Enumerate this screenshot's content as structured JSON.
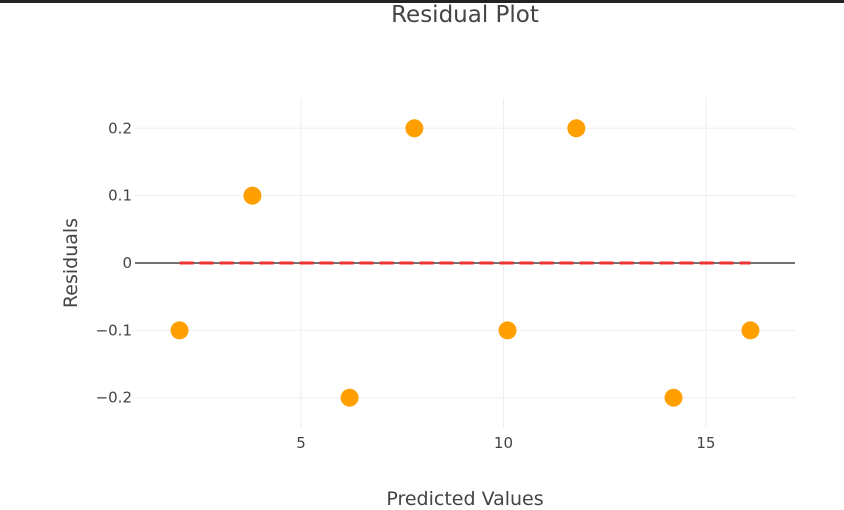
{
  "chart_data": {
    "type": "scatter",
    "title": "Residual Plot",
    "xlabel": "Predicted Values",
    "ylabel": "Residuals",
    "xlim": [
      0.9,
      17.2
    ],
    "ylim": [
      -0.245,
      0.245
    ],
    "x_ticks": [
      {
        "value": 5,
        "label": "5"
      },
      {
        "value": 10,
        "label": "10"
      },
      {
        "value": 15,
        "label": "15"
      }
    ],
    "y_ticks": [
      {
        "value": 0.2,
        "label": "0.2"
      },
      {
        "value": 0.1,
        "label": "0.1"
      },
      {
        "value": 0,
        "label": "0"
      },
      {
        "value": -0.1,
        "label": "−0.1"
      },
      {
        "value": -0.2,
        "label": "−0.2"
      }
    ],
    "grid": true,
    "series": [
      {
        "x": [
          2.0,
          3.8,
          6.2,
          7.8,
          10.1,
          11.8,
          14.2,
          16.1
        ],
        "y": [
          -0.1,
          0.1,
          -0.2,
          0.2,
          -0.1,
          0.2,
          -0.2,
          -0.1
        ],
        "color": "#ff9f00"
      }
    ],
    "reference_line": {
      "y": 0,
      "x_range": [
        2.0,
        16.1
      ],
      "style": "dashed",
      "color": "#ee3333"
    },
    "zero_line_color": "#444444",
    "grid_color": "#eeeeee"
  }
}
